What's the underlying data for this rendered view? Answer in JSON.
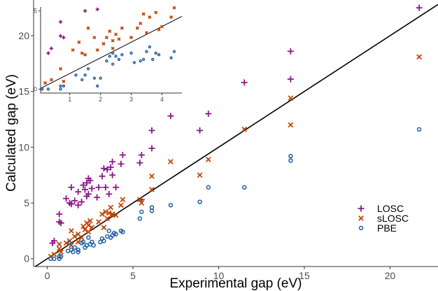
{
  "chart_data": [
    {
      "type": "scatter",
      "title": "",
      "xlabel": "Experimental gap (eV)",
      "ylabel": "Calculated gap (eV)",
      "xlim": [
        -0.8,
        22.8
      ],
      "ylim": [
        -0.7,
        23.2
      ],
      "xticks": [
        "0",
        "5",
        "10",
        "15",
        "20"
      ],
      "yticks": [
        "0",
        "5",
        "10",
        "15",
        "20"
      ],
      "grid": false,
      "legend_position": "bottom-right",
      "reference_line": {
        "description": "y = x",
        "color": "#000000"
      },
      "series": [
        {
          "name": "LOSC",
          "marker": "plus",
          "color": "#8B1A89",
          "points": [
            [
              0.3,
              1.4
            ],
            [
              0.4,
              1.6
            ],
            [
              0.7,
              3.3
            ],
            [
              0.7,
              4.0
            ],
            [
              0.8,
              3.2
            ],
            [
              1.1,
              5.4
            ],
            [
              1.3,
              5.0
            ],
            [
              1.4,
              6.4
            ],
            [
              1.4,
              4.9
            ],
            [
              1.6,
              5.2
            ],
            [
              1.8,
              4.8
            ],
            [
              1.8,
              6.0
            ],
            [
              2.0,
              5.1
            ],
            [
              2.1,
              6.6
            ],
            [
              2.2,
              6.2
            ],
            [
              2.3,
              6.8
            ],
            [
              2.3,
              5.6
            ],
            [
              2.4,
              5.8
            ],
            [
              2.4,
              7.2
            ],
            [
              2.5,
              7.0
            ],
            [
              2.6,
              6.3
            ],
            [
              2.9,
              5.5
            ],
            [
              3.0,
              6.4
            ],
            [
              3.2,
              7.4
            ],
            [
              3.3,
              8.1
            ],
            [
              3.4,
              6.4
            ],
            [
              3.5,
              8.0
            ],
            [
              3.6,
              5.8
            ],
            [
              3.7,
              8.2
            ],
            [
              3.8,
              7.5
            ],
            [
              3.8,
              8.7
            ],
            [
              4.0,
              6.4
            ],
            [
              4.3,
              8.5
            ],
            [
              4.4,
              9.3
            ],
            [
              5.4,
              8.6
            ],
            [
              5.5,
              9.3
            ],
            [
              5.5,
              5.3
            ],
            [
              6.1,
              9.9
            ],
            [
              6.1,
              11.5
            ],
            [
              7.2,
              12.8
            ],
            [
              8.9,
              11.5
            ],
            [
              9.4,
              13.0
            ],
            [
              11.5,
              15.8
            ],
            [
              14.2,
              18.6
            ],
            [
              14.2,
              16.1
            ],
            [
              21.7,
              22.5
            ]
          ]
        },
        {
          "name": "sLOSC",
          "marker": "x",
          "color": "#C0470B",
          "points": [
            [
              0.2,
              0.2
            ],
            [
              0.4,
              0.4
            ],
            [
              0.7,
              0.9
            ],
            [
              0.7,
              1.3
            ],
            [
              0.8,
              0.6
            ],
            [
              1.1,
              1.4
            ],
            [
              1.3,
              1.6
            ],
            [
              1.4,
              2.5
            ],
            [
              1.4,
              1.2
            ],
            [
              1.6,
              2.0
            ],
            [
              1.8,
              1.5
            ],
            [
              1.8,
              2.2
            ],
            [
              2.0,
              1.9
            ],
            [
              2.1,
              2.9
            ],
            [
              2.2,
              2.6
            ],
            [
              2.3,
              3.2
            ],
            [
              2.4,
              3.0
            ],
            [
              2.4,
              2.4
            ],
            [
              2.5,
              3.4
            ],
            [
              2.6,
              2.8
            ],
            [
              3.0,
              3.3
            ],
            [
              3.2,
              4.0
            ],
            [
              3.3,
              2.8
            ],
            [
              3.4,
              4.2
            ],
            [
              3.5,
              3.6
            ],
            [
              3.6,
              4.1
            ],
            [
              3.7,
              4.6
            ],
            [
              3.8,
              3.9
            ],
            [
              3.8,
              4.0
            ],
            [
              4.0,
              3.9
            ],
            [
              4.3,
              4.8
            ],
            [
              4.4,
              5.3
            ],
            [
              5.4,
              5.3
            ],
            [
              5.5,
              5.0
            ],
            [
              6.1,
              6.2
            ],
            [
              6.1,
              7.4
            ],
            [
              7.2,
              8.7
            ],
            [
              8.9,
              7.5
            ],
            [
              9.4,
              8.9
            ],
            [
              11.5,
              11.6
            ],
            [
              14.2,
              14.4
            ],
            [
              14.2,
              12.0
            ],
            [
              21.7,
              18.1
            ]
          ]
        },
        {
          "name": "PBE",
          "marker": "circle",
          "color": "#1F5DA0",
          "points": [
            [
              0.2,
              0.0
            ],
            [
              0.4,
              0.0
            ],
            [
              0.7,
              0.2
            ],
            [
              0.7,
              0.0
            ],
            [
              0.8,
              0.2
            ],
            [
              1.2,
              0.7
            ],
            [
              1.3,
              1.4
            ],
            [
              1.4,
              0.8
            ],
            [
              1.5,
              0.6
            ],
            [
              1.6,
              1.0
            ],
            [
              1.8,
              0.6
            ],
            [
              1.8,
              0.8
            ],
            [
              2.0,
              1.4
            ],
            [
              2.1,
              1.5
            ],
            [
              2.2,
              1.0
            ],
            [
              2.3,
              1.2
            ],
            [
              2.4,
              1.9
            ],
            [
              2.5,
              1.3
            ],
            [
              2.6,
              1.5
            ],
            [
              2.7,
              1.2
            ],
            [
              3.1,
              1.5
            ],
            [
              3.2,
              1.8
            ],
            [
              3.3,
              1.6
            ],
            [
              3.5,
              2.0
            ],
            [
              3.6,
              2.5
            ],
            [
              3.7,
              1.9
            ],
            [
              3.8,
              2.1
            ],
            [
              3.9,
              2.3
            ],
            [
              4.0,
              2.2
            ],
            [
              4.3,
              2.5
            ],
            [
              4.4,
              2.4
            ],
            [
              5.4,
              3.6
            ],
            [
              5.5,
              4.2
            ],
            [
              6.1,
              4.6
            ],
            [
              6.1,
              4.3
            ],
            [
              7.2,
              4.8
            ],
            [
              8.9,
              5.1
            ],
            [
              9.4,
              6.4
            ],
            [
              11.5,
              6.4
            ],
            [
              14.2,
              9.2
            ],
            [
              14.2,
              8.8
            ],
            [
              21.7,
              11.6
            ]
          ]
        }
      ]
    },
    {
      "type": "scatter",
      "title": "",
      "xlabel": "",
      "ylabel": "",
      "xlim": [
        0.05,
        4.65
      ],
      "ylim": [
        -0.25,
        5.25
      ],
      "xticks": [
        "1",
        "2",
        "3",
        "4"
      ],
      "yticks": [
        "0",
        "5"
      ],
      "grid": false,
      "legend_position": "none",
      "reference_line": {
        "description": "y = x",
        "color": "#000000"
      },
      "series": [
        {
          "name": "LOSC",
          "marker": "plus",
          "color": "#8B1A89",
          "points": [
            [
              0.3,
              2.3
            ],
            [
              0.4,
              2.6
            ],
            [
              0.7,
              4.3
            ],
            [
              0.7,
              3.4
            ],
            [
              0.8,
              3.3
            ],
            [
              1.5,
              5.0
            ],
            [
              1.9,
              5.1
            ]
          ]
        },
        {
          "name": "sLOSC",
          "marker": "x",
          "color": "#C0470B",
          "points": [
            [
              0.2,
              0.4
            ],
            [
              0.4,
              0.6
            ],
            [
              0.7,
              1.3
            ],
            [
              0.8,
              0.5
            ],
            [
              1.1,
              2.5
            ],
            [
              1.3,
              3.0
            ],
            [
              1.4,
              2.3
            ],
            [
              1.5,
              2.2
            ],
            [
              1.6,
              3.9
            ],
            [
              1.8,
              3.3
            ],
            [
              1.9,
              2.5
            ],
            [
              2.1,
              2.9
            ],
            [
              2.2,
              3.3
            ],
            [
              2.3,
              3.7
            ],
            [
              2.4,
              3.1
            ],
            [
              2.4,
              2.6
            ],
            [
              2.5,
              3.5
            ],
            [
              2.6,
              3.2
            ],
            [
              2.7,
              3.9
            ],
            [
              3.0,
              3.3
            ],
            [
              3.2,
              3.9
            ],
            [
              3.3,
              4.2
            ],
            [
              3.4,
              4.8
            ],
            [
              3.5,
              3.6
            ],
            [
              3.6,
              4.6
            ],
            [
              3.8,
              4.9
            ],
            [
              3.9,
              3.8
            ],
            [
              4.0,
              4.0
            ],
            [
              4.3,
              4.6
            ],
            [
              4.4,
              5.2
            ]
          ]
        },
        {
          "name": "PBE",
          "marker": "circle",
          "color": "#1F5DA0",
          "points": [
            [
              0.1,
              0.0
            ],
            [
              0.3,
              0.0
            ],
            [
              0.7,
              0.2
            ],
            [
              0.7,
              0.0
            ],
            [
              0.8,
              0.2
            ],
            [
              1.2,
              0.9
            ],
            [
              1.4,
              0.6
            ],
            [
              1.5,
              0.9
            ],
            [
              1.6,
              1.3
            ],
            [
              1.8,
              0.7
            ],
            [
              1.9,
              0.2
            ],
            [
              2.0,
              0.7
            ],
            [
              2.2,
              1.8
            ],
            [
              2.3,
              2.1
            ],
            [
              2.4,
              2.3
            ],
            [
              2.4,
              1.6
            ],
            [
              2.5,
              2.1
            ],
            [
              2.6,
              1.9
            ],
            [
              2.7,
              2.2
            ],
            [
              3.0,
              2.3
            ],
            [
              3.1,
              1.7
            ],
            [
              3.3,
              1.8
            ],
            [
              3.4,
              1.9
            ],
            [
              3.5,
              2.4
            ],
            [
              3.6,
              2.7
            ],
            [
              3.7,
              1.9
            ],
            [
              3.8,
              2.3
            ],
            [
              3.9,
              2.2
            ],
            [
              4.3,
              2.0
            ],
            [
              4.4,
              2.4
            ]
          ]
        }
      ]
    }
  ]
}
